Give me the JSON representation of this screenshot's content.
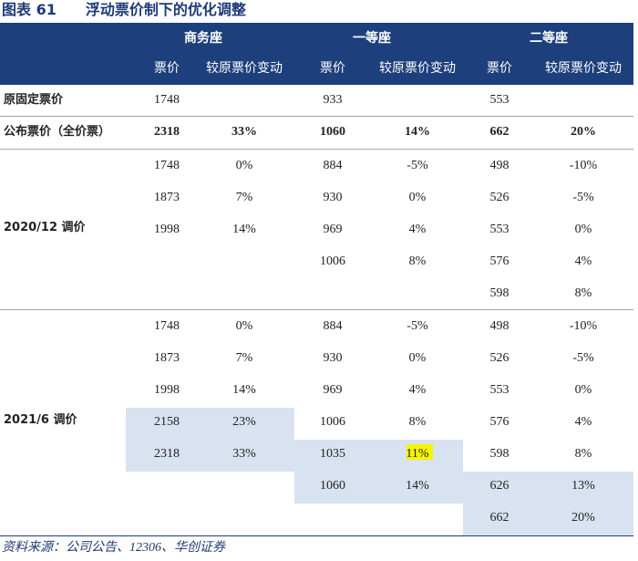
{
  "title": "图表 61　　浮动票价制下的优化调整",
  "header": {
    "groups": [
      "商务座",
      "一等座",
      "二等座"
    ],
    "columns": [
      "票价",
      "较原票价变动",
      "票价",
      "较原票价变动",
      "票价",
      "较原票价变动"
    ]
  },
  "rows": [
    {
      "label": "原固定票价",
      "cells": [
        "1748",
        null,
        "933",
        null,
        "553",
        null
      ]
    },
    {
      "label": "公布票价（全价票）",
      "cells": [
        "2318",
        "33%",
        "1060",
        "14%",
        "662",
        "20%"
      ]
    }
  ],
  "groups": [
    {
      "label": "2020/12 调价",
      "rows": [
        [
          "1748",
          "0%",
          "884",
          "-5%",
          "498",
          "-10%"
        ],
        [
          "1873",
          "7%",
          "930",
          "0%",
          "526",
          "-5%"
        ],
        [
          "1998",
          "14%",
          "969",
          "4%",
          "553",
          "0%"
        ],
        [
          null,
          null,
          "1006",
          "8%",
          "576",
          "4%"
        ],
        [
          null,
          null,
          null,
          null,
          "598",
          "8%"
        ]
      ]
    },
    {
      "label": "2021/6 调价",
      "rows": [
        [
          "1748",
          "0%",
          "884",
          "-5%",
          "498",
          "-10%"
        ],
        [
          "1873",
          "7%",
          "930",
          "0%",
          "526",
          "-5%"
        ],
        [
          "1998",
          "14%",
          "969",
          "4%",
          "553",
          "0%"
        ],
        [
          "2158",
          "23%",
          "1006",
          "8%",
          "576",
          "4%"
        ],
        [
          "2318",
          "33%",
          "1035",
          "11%",
          "598",
          "8%"
        ],
        [
          null,
          null,
          "1060",
          "14%",
          "626",
          "13%"
        ],
        [
          null,
          null,
          null,
          null,
          "662",
          "20%"
        ]
      ]
    }
  ],
  "source": "资料来源：公司公告、12306、华创证券"
}
